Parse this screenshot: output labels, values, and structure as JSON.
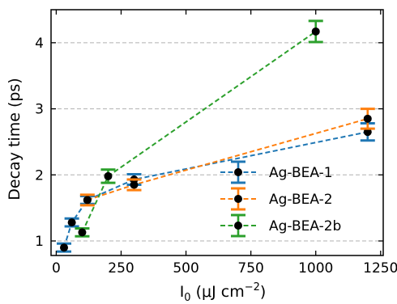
{
  "chart_data": {
    "type": "scatter",
    "title": "",
    "xlabel": "I₀ (μJ cm⁻²)",
    "xlabel_main": "I",
    "xlabel_sub": "0",
    "xlabel_rest": " (μJ cm",
    "xlabel_sup": "−2",
    "xlabel_end": ")",
    "ylabel": "Decay time (ps)",
    "xlim": [
      -20,
      1260
    ],
    "ylim": [
      0.78,
      4.5
    ],
    "xticks": [
      0,
      250,
      500,
      750,
      1000,
      1250
    ],
    "yticks": [
      1,
      2,
      3,
      4
    ],
    "grid": "horizontal dashed",
    "legend_position": "center-right",
    "series": [
      {
        "name": "Ag-BEA-1",
        "color": "#1f77b4",
        "x": [
          30,
          60,
          120,
          300,
          1200
        ],
        "y": [
          0.9,
          1.28,
          1.62,
          1.93,
          2.65
        ],
        "err": [
          0.06,
          0.06,
          0.06,
          0.08,
          0.13
        ]
      },
      {
        "name": "Ag-BEA-2",
        "color": "#ff7f0e",
        "x": [
          120,
          300,
          1200
        ],
        "y": [
          1.62,
          1.85,
          2.85
        ],
        "err": [
          0.08,
          0.08,
          0.15
        ]
      },
      {
        "name": "Ag-BEA-2b",
        "color": "#2ca02c",
        "x": [
          100,
          200,
          1000
        ],
        "y": [
          1.13,
          1.98,
          4.17
        ],
        "err": [
          0.06,
          0.1,
          0.16
        ]
      }
    ]
  }
}
